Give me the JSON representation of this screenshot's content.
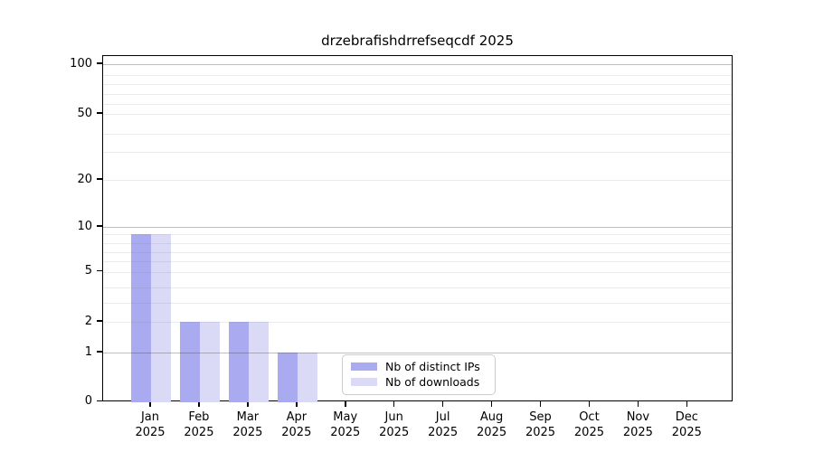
{
  "chart_data": {
    "type": "bar",
    "title": "drzebrafishdrrefseqcdf 2025",
    "categories": [
      "Jan 2025",
      "Feb 2025",
      "Mar 2025",
      "Apr 2025",
      "May 2025",
      "Jun 2025",
      "Jul 2025",
      "Aug 2025",
      "Sep 2025",
      "Oct 2025",
      "Nov 2025",
      "Dec 2025"
    ],
    "series": [
      {
        "name": "Nb of distinct IPs",
        "color": "#aaaaf0",
        "values": [
          9,
          2,
          2,
          1,
          0,
          0,
          0,
          0,
          0,
          0,
          0,
          0
        ]
      },
      {
        "name": "Nb of downloads",
        "color": "#dadaf7",
        "values": [
          9,
          2,
          2,
          1,
          0,
          0,
          0,
          0,
          0,
          0,
          0,
          0
        ]
      }
    ],
    "y_axis": {
      "scale": "log-like",
      "tick_values": [
        0,
        1,
        2,
        5,
        10,
        20,
        50,
        100
      ],
      "major_grid_values": [
        1,
        10,
        100
      ],
      "light_grid_values": [
        2,
        3,
        4,
        5,
        6,
        7,
        8,
        9,
        20,
        30,
        40,
        50,
        60,
        70,
        80,
        90
      ],
      "ylim": [
        0,
        100
      ]
    },
    "legend_position": "inside-bottom-center",
    "grid": true
  }
}
